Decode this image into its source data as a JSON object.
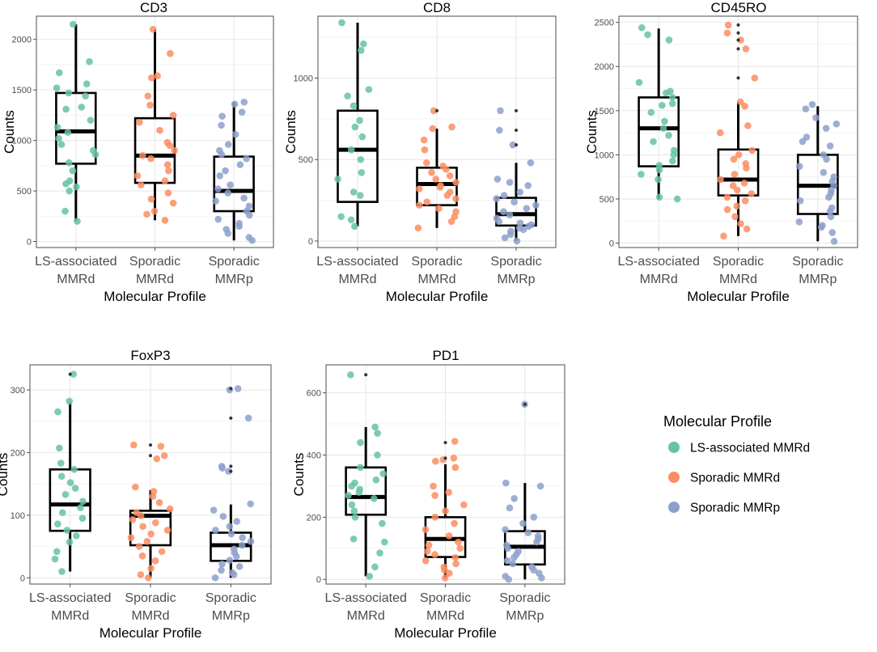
{
  "chart_data": {
    "type": "box-jitter",
    "panels": [
      {
        "title": "CD3",
        "ylabel": "Counts",
        "xlabel": "Molecular Profile",
        "ylim": [
          -60,
          2230
        ],
        "yticks": [
          0,
          500,
          1000,
          1500,
          2000
        ],
        "categories": [
          "LS-associated\nMMRd",
          "Sporadic\nMMRd",
          "Sporadic\nMMRp"
        ],
        "boxes": [
          {
            "min": 200,
            "q1": 770,
            "median": 1090,
            "q3": 1470,
            "max": 2150,
            "outliers": []
          },
          {
            "min": 210,
            "q1": 580,
            "median": 850,
            "q3": 1220,
            "max": 2100,
            "outliers": []
          },
          {
            "min": 10,
            "q1": 300,
            "median": 500,
            "q3": 840,
            "max": 1380,
            "outliers": []
          }
        ],
        "points": [
          [
            2150,
            1780,
            1670,
            1560,
            1520,
            1470,
            1440,
            1330,
            1310,
            1200,
            1130,
            1080,
            1020,
            960,
            900,
            860,
            780,
            700,
            600,
            570,
            540,
            500,
            300,
            200
          ],
          [
            2100,
            1860,
            1640,
            1620,
            1440,
            1350,
            1250,
            1180,
            1100,
            980,
            950,
            900,
            850,
            820,
            760,
            700,
            650,
            600,
            560,
            480,
            420,
            380,
            300,
            270,
            210
          ],
          [
            1380,
            1360,
            1280,
            1240,
            1150,
            1060,
            960,
            900,
            860,
            820,
            760,
            700,
            650,
            560,
            520,
            480,
            430,
            400,
            350,
            300,
            260,
            220,
            180,
            150,
            120,
            80,
            40,
            10
          ]
        ]
      },
      {
        "title": "CD8",
        "ylabel": "Counts",
        "xlabel": "Molecular Profile",
        "ylim": [
          -40,
          1380
        ],
        "yticks": [
          0,
          500,
          1000
        ],
        "categories": [
          "LS-associated\nMMRd",
          "Sporadic\nMMRd",
          "Sporadic\nMMRp"
        ],
        "boxes": [
          {
            "min": 90,
            "q1": 240,
            "median": 560,
            "q3": 800,
            "max": 1340,
            "outliers": []
          },
          {
            "min": 80,
            "q1": 220,
            "median": 350,
            "q3": 450,
            "max": 690,
            "outliers": [
              800
            ]
          },
          {
            "min": 0,
            "q1": 95,
            "median": 165,
            "q3": 265,
            "max": 480,
            "outliers": [
              590,
              680,
              800
            ]
          }
        ],
        "points": [
          [
            1340,
            1210,
            1170,
            930,
            890,
            830,
            740,
            700,
            640,
            560,
            500,
            420,
            380,
            300,
            280,
            150,
            130,
            90
          ],
          [
            800,
            700,
            690,
            620,
            560,
            480,
            460,
            440,
            420,
            400,
            380,
            360,
            340,
            330,
            320,
            300,
            280,
            260,
            240,
            220,
            200,
            180,
            150,
            120,
            80
          ],
          [
            800,
            680,
            590,
            480,
            380,
            360,
            340,
            300,
            280,
            260,
            240,
            220,
            200,
            180,
            160,
            140,
            120,
            110,
            100,
            90,
            80,
            70,
            60,
            40,
            20,
            0
          ]
        ]
      },
      {
        "title": "CD45RO",
        "ylabel": "Counts",
        "xlabel": "Molecular Profile",
        "ylim": [
          -50,
          2570
        ],
        "yticks": [
          0,
          500,
          1000,
          1500,
          2000,
          2500
        ],
        "categories": [
          "LS-associated\nMMRd",
          "Sporadic\nMMRd",
          "Sporadic\nMMRp"
        ],
        "boxes": [
          {
            "min": 500,
            "q1": 870,
            "median": 1300,
            "q3": 1650,
            "max": 2430,
            "outliers": []
          },
          {
            "min": 80,
            "q1": 540,
            "median": 720,
            "q3": 1060,
            "max": 1600,
            "outliers": [
              1870,
              2200,
              2300,
              2380,
              2470
            ]
          },
          {
            "min": 20,
            "q1": 330,
            "median": 650,
            "q3": 1000,
            "max": 1550,
            "outliers": []
          }
        ],
        "points": [
          [
            2440,
            2360,
            2300,
            1820,
            1720,
            1700,
            1650,
            1580,
            1560,
            1480,
            1380,
            1300,
            1220,
            1150,
            1050,
            1000,
            930,
            880,
            830,
            780,
            720,
            520,
            500
          ],
          [
            2470,
            2380,
            2300,
            2200,
            1870,
            1600,
            1550,
            1330,
            1250,
            1050,
            1000,
            950,
            900,
            850,
            780,
            720,
            680,
            650,
            600,
            560,
            520,
            480,
            420,
            380,
            300,
            220,
            160,
            80
          ],
          [
            1570,
            1520,
            1420,
            1350,
            1300,
            1200,
            1150,
            1100,
            1000,
            950,
            870,
            800,
            750,
            700,
            650,
            600,
            560,
            520,
            480,
            400,
            360,
            300,
            240,
            200,
            180,
            120,
            20
          ]
        ]
      },
      {
        "title": "FoxP3",
        "ylabel": "Counts",
        "xlabel": "Molecular Profile",
        "ylim": [
          -10,
          340
        ],
        "yticks": [
          0,
          100,
          200,
          300
        ],
        "categories": [
          "LS-associated\nMMRd",
          "Sporadic\nMMRd",
          "Sporadic\nMMRp"
        ],
        "boxes": [
          {
            "min": 10,
            "q1": 75,
            "median": 117,
            "q3": 173,
            "max": 280,
            "outliers": [
              325
            ]
          },
          {
            "min": 0,
            "q1": 52,
            "median": 99,
            "q3": 107,
            "max": 140,
            "outliers": [
              195,
              212
            ]
          },
          {
            "min": 0,
            "q1": 27,
            "median": 52,
            "q3": 72,
            "max": 117,
            "outliers": [
              170,
              178,
              255,
              302
            ]
          }
        ],
        "points": [
          [
            325,
            282,
            265,
            207,
            183,
            173,
            162,
            152,
            143,
            133,
            122,
            112,
            104,
            95,
            86,
            76,
            67,
            57,
            42,
            30,
            10
          ],
          [
            212,
            210,
            195,
            190,
            145,
            138,
            130,
            120,
            110,
            104,
            99,
            93,
            88,
            82,
            76,
            70,
            64,
            58,
            50,
            42,
            35,
            27,
            15,
            5,
            0
          ],
          [
            302,
            300,
            255,
            178,
            175,
            170,
            118,
            108,
            98,
            90,
            82,
            76,
            70,
            64,
            58,
            52,
            46,
            40,
            34,
            28,
            22,
            18,
            12,
            8,
            5,
            0
          ]
        ]
      },
      {
        "title": "PD1",
        "ylabel": "Counts",
        "xlabel": "Molecular Profile",
        "ylim": [
          -15,
          690
        ],
        "yticks": [
          0,
          200,
          400,
          600
        ],
        "categories": [
          "LS-associated\nMMRd",
          "Sporadic\nMMRd",
          "Sporadic\nMMRp"
        ],
        "boxes": [
          {
            "min": 10,
            "q1": 208,
            "median": 265,
            "q3": 360,
            "max": 490,
            "outliers": [
              658
            ]
          },
          {
            "min": 5,
            "q1": 72,
            "median": 130,
            "q3": 200,
            "max": 370,
            "outliers": [
              390,
              440
            ]
          },
          {
            "min": 0,
            "q1": 48,
            "median": 105,
            "q3": 155,
            "max": 310,
            "outliers": [
              563
            ]
          }
        ],
        "points": [
          [
            658,
            490,
            470,
            440,
            400,
            360,
            340,
            320,
            310,
            300,
            290,
            280,
            270,
            260,
            240,
            220,
            200,
            180,
            130,
            120,
            85,
            40,
            10
          ],
          [
            444,
            390,
            385,
            380,
            360,
            300,
            280,
            270,
            240,
            220,
            200,
            180,
            160,
            140,
            120,
            110,
            100,
            90,
            80,
            70,
            60,
            50,
            40,
            30,
            20,
            5
          ],
          [
            563,
            310,
            300,
            260,
            230,
            200,
            180,
            160,
            150,
            140,
            130,
            120,
            110,
            100,
            90,
            80,
            70,
            60,
            50,
            40,
            30,
            20,
            10,
            5,
            0
          ]
        ]
      }
    ],
    "legend": {
      "title": "Molecular Profile",
      "items": [
        {
          "label": "LS-associated MMRd",
          "color": "#66c2a5"
        },
        {
          "label": "Sporadic MMRd",
          "color": "#fc8d62"
        },
        {
          "label": "Sporadic MMRp",
          "color": "#8da0cb"
        }
      ]
    }
  }
}
